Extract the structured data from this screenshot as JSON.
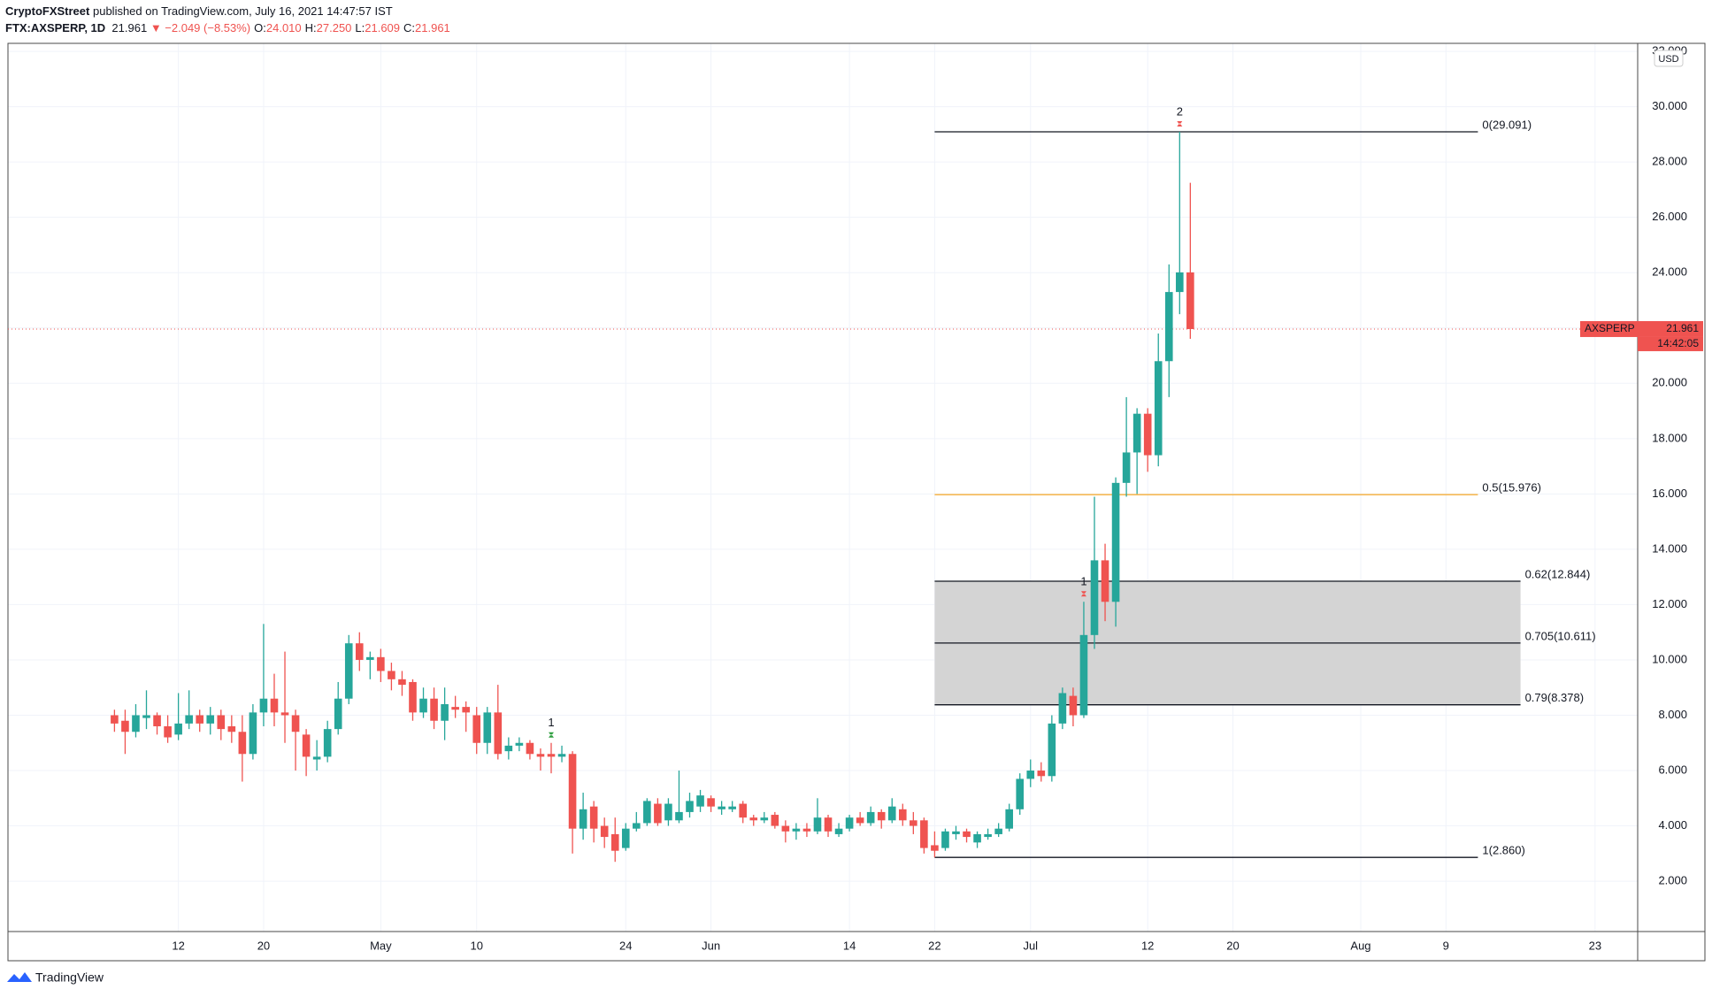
{
  "header": {
    "publisher": "CryptoFXStreet",
    "published": "published on TradingView.com, July 16, 2021 14:47:57 IST",
    "symbol": "FTX:AXSPERP, 1D",
    "last": "21.961",
    "change": "▼ −2.049 (−8.53%)",
    "ohlc": [
      {
        "key": "O:",
        "value": "24.010"
      },
      {
        "key": "H:",
        "value": "27.250"
      },
      {
        "key": "L:",
        "value": "21.609"
      },
      {
        "key": "C:",
        "value": "21.961"
      }
    ]
  },
  "footer": {
    "brand": "TradingView"
  },
  "chart_data": {
    "type": "candlestick",
    "up_color": "#26a69a",
    "down_color": "#ef5350",
    "currency": "USD",
    "x": [
      "2021-04-06",
      "2021-04-07",
      "2021-04-08",
      "2021-04-09",
      "2021-04-10",
      "2021-04-11",
      "2021-04-12",
      "2021-04-13",
      "2021-04-14",
      "2021-04-15",
      "2021-04-16",
      "2021-04-17",
      "2021-04-18",
      "2021-04-19",
      "2021-04-20",
      "2021-04-21",
      "2021-04-22",
      "2021-04-23",
      "2021-04-24",
      "2021-04-25",
      "2021-04-26",
      "2021-04-27",
      "2021-04-28",
      "2021-04-29",
      "2021-04-30",
      "2021-05-01",
      "2021-05-02",
      "2021-05-03",
      "2021-05-04",
      "2021-05-05",
      "2021-05-06",
      "2021-05-07",
      "2021-05-08",
      "2021-05-09",
      "2021-05-10",
      "2021-05-11",
      "2021-05-12",
      "2021-05-13",
      "2021-05-14",
      "2021-05-15",
      "2021-05-16",
      "2021-05-17",
      "2021-05-18",
      "2021-05-19",
      "2021-05-20",
      "2021-05-21",
      "2021-05-22",
      "2021-05-23",
      "2021-05-24",
      "2021-05-25",
      "2021-05-26",
      "2021-05-27",
      "2021-05-28",
      "2021-05-29",
      "2021-05-30",
      "2021-05-31",
      "2021-06-01",
      "2021-06-02",
      "2021-06-03",
      "2021-06-04",
      "2021-06-05",
      "2021-06-06",
      "2021-06-07",
      "2021-06-08",
      "2021-06-09",
      "2021-06-10",
      "2021-06-11",
      "2021-06-12",
      "2021-06-13",
      "2021-06-14",
      "2021-06-15",
      "2021-06-16",
      "2021-06-17",
      "2021-06-18",
      "2021-06-19",
      "2021-06-20",
      "2021-06-21",
      "2021-06-22",
      "2021-06-23",
      "2021-06-24",
      "2021-06-25",
      "2021-06-26",
      "2021-06-27",
      "2021-06-28",
      "2021-06-29",
      "2021-06-30",
      "2021-07-01",
      "2021-07-02",
      "2021-07-03",
      "2021-07-04",
      "2021-07-05",
      "2021-07-06",
      "2021-07-07",
      "2021-07-08",
      "2021-07-09",
      "2021-07-10",
      "2021-07-11",
      "2021-07-12",
      "2021-07-13",
      "2021-07-14",
      "2021-07-15",
      "2021-07-16"
    ],
    "open": [
      8.0,
      7.8,
      7.4,
      7.9,
      8.0,
      7.6,
      7.3,
      7.7,
      8.0,
      7.7,
      8.0,
      7.6,
      7.4,
      6.6,
      8.1,
      8.6,
      8.1,
      8.0,
      7.3,
      6.4,
      6.5,
      7.5,
      8.6,
      10.6,
      10.0,
      10.1,
      9.6,
      9.3,
      9.2,
      8.1,
      8.6,
      7.8,
      8.3,
      8.3,
      8.0,
      7.0,
      8.1,
      6.7,
      6.9,
      7.0,
      6.6,
      6.6,
      6.5,
      6.6,
      3.9,
      4.7,
      4.0,
      3.7,
      3.2,
      3.9,
      4.1,
      4.8,
      4.2,
      4.2,
      4.5,
      4.7,
      5.0,
      4.6,
      4.6,
      4.8,
      4.3,
      4.2,
      4.4,
      4.0,
      3.8,
      3.9,
      3.8,
      4.3,
      3.7,
      3.9,
      4.3,
      4.1,
      4.5,
      4.2,
      4.6,
      4.2,
      4.2,
      3.3,
      3.2,
      3.7,
      3.8,
      3.4,
      3.6,
      3.7,
      3.9,
      4.6,
      5.7,
      6.0,
      5.8,
      7.7,
      8.7,
      8.0,
      10.9,
      13.6,
      12.1,
      16.4,
      17.5,
      18.9,
      17.4,
      20.8,
      23.3,
      24.01
    ],
    "high": [
      8.2,
      8.2,
      8.4,
      8.9,
      8.1,
      8.0,
      8.8,
      8.9,
      8.2,
      8.3,
      8.2,
      8.0,
      8.0,
      8.4,
      11.3,
      9.5,
      10.3,
      8.2,
      7.5,
      7.1,
      7.8,
      9.2,
      10.9,
      11.0,
      10.3,
      10.4,
      9.9,
      9.6,
      9.3,
      9.0,
      9.0,
      9.0,
      8.7,
      8.5,
      8.3,
      8.3,
      9.1,
      7.2,
      7.2,
      7.1,
      6.8,
      7.0,
      6.9,
      6.7,
      5.2,
      4.9,
      4.3,
      4.3,
      4.1,
      4.5,
      5.0,
      5.0,
      5.0,
      6.0,
      5.2,
      5.3,
      5.1,
      4.9,
      4.9,
      4.9,
      4.4,
      4.5,
      4.5,
      4.2,
      4.1,
      4.1,
      5.0,
      4.4,
      4.1,
      4.4,
      4.5,
      4.7,
      4.6,
      5.0,
      4.8,
      4.5,
      4.3,
      3.8,
      3.9,
      4.0,
      3.9,
      3.8,
      3.9,
      4.1,
      4.8,
      5.9,
      6.4,
      6.3,
      8.0,
      9.0,
      9.0,
      12.1,
      15.9,
      14.2,
      16.6,
      19.5,
      19.1,
      19.1,
      21.8,
      24.3,
      29.091,
      27.25
    ],
    "low": [
      7.4,
      6.6,
      7.2,
      7.5,
      7.3,
      7.0,
      7.1,
      7.5,
      7.4,
      7.3,
      7.1,
      7.0,
      5.6,
      6.4,
      7.6,
      7.6,
      7.0,
      6.0,
      5.8,
      6.0,
      6.3,
      7.3,
      8.4,
      9.6,
      9.3,
      9.2,
      8.9,
      8.7,
      7.8,
      7.9,
      7.5,
      7.1,
      7.9,
      7.4,
      6.6,
      6.6,
      6.4,
      6.4,
      6.7,
      6.4,
      6.0,
      5.9,
      6.3,
      3.0,
      3.5,
      3.4,
      3.2,
      2.7,
      3.1,
      3.8,
      4.0,
      4.0,
      4.0,
      4.1,
      4.3,
      4.5,
      4.5,
      4.4,
      4.5,
      4.1,
      4.0,
      4.1,
      3.9,
      3.4,
      3.5,
      3.6,
      3.7,
      3.6,
      3.6,
      3.8,
      4.0,
      4.0,
      3.9,
      4.1,
      4.0,
      3.7,
      3.0,
      2.86,
      3.1,
      3.5,
      3.4,
      3.2,
      3.5,
      3.6,
      3.8,
      4.4,
      5.4,
      5.6,
      5.6,
      7.5,
      7.6,
      7.9,
      10.4,
      11.4,
      11.2,
      15.9,
      16.0,
      16.8,
      17.0,
      19.5,
      22.5,
      21.609
    ],
    "close": [
      7.7,
      7.4,
      8.0,
      8.0,
      7.6,
      7.2,
      7.7,
      8.0,
      7.7,
      8.0,
      7.5,
      7.4,
      6.6,
      8.1,
      8.6,
      8.1,
      8.0,
      7.4,
      6.5,
      6.5,
      7.5,
      8.6,
      10.6,
      10.0,
      10.1,
      9.6,
      9.3,
      9.1,
      8.1,
      8.6,
      7.8,
      8.4,
      8.2,
      8.1,
      7.0,
      8.1,
      6.6,
      6.9,
      7.0,
      6.6,
      6.5,
      6.5,
      6.6,
      3.9,
      4.6,
      3.9,
      3.6,
      3.1,
      3.9,
      4.1,
      4.9,
      4.1,
      4.8,
      4.5,
      4.9,
      5.1,
      4.7,
      4.7,
      4.7,
      4.3,
      4.2,
      4.3,
      4.0,
      3.8,
      3.9,
      3.8,
      4.3,
      3.8,
      3.9,
      4.3,
      4.1,
      4.5,
      4.2,
      4.7,
      4.2,
      4.0,
      3.2,
      3.1,
      3.8,
      3.8,
      3.6,
      3.7,
      3.7,
      3.9,
      4.6,
      5.7,
      6.0,
      5.8,
      7.7,
      8.8,
      8.0,
      10.9,
      13.6,
      12.1,
      16.4,
      17.5,
      18.9,
      17.4,
      20.8,
      23.3,
      24.01,
      21.961
    ],
    "xlim": [
      "2021-03-27",
      "2021-08-27"
    ],
    "xticks": [
      {
        "value": "2021-04-12",
        "label": "12"
      },
      {
        "value": "2021-04-20",
        "label": "20"
      },
      {
        "value": "2021-05-01",
        "label": "May"
      },
      {
        "value": "2021-05-10",
        "label": "10"
      },
      {
        "value": "2021-05-24",
        "label": "24"
      },
      {
        "value": "2021-06-01",
        "label": "Jun"
      },
      {
        "value": "2021-06-14",
        "label": "14"
      },
      {
        "value": "2021-06-22",
        "label": "22"
      },
      {
        "value": "2021-07-01",
        "label": "Jul"
      },
      {
        "value": "2021-07-12",
        "label": "12"
      },
      {
        "value": "2021-07-20",
        "label": "20"
      },
      {
        "value": "2021-08-01",
        "label": "Aug"
      },
      {
        "value": "2021-08-09",
        "label": "9"
      },
      {
        "value": "2021-08-23",
        "label": "23"
      }
    ],
    "ylim": [
      0.18,
      32.29
    ],
    "yticks": [
      {
        "value": 2,
        "label": "2.000"
      },
      {
        "value": 4,
        "label": "4.000"
      },
      {
        "value": 6,
        "label": "6.000"
      },
      {
        "value": 8,
        "label": "8.000"
      },
      {
        "value": 10,
        "label": "10.000"
      },
      {
        "value": 12,
        "label": "12.000"
      },
      {
        "value": 14,
        "label": "14.000"
      },
      {
        "value": 16,
        "label": "16.000"
      },
      {
        "value": 18,
        "label": "18.000"
      },
      {
        "value": 20,
        "label": "20.000"
      },
      {
        "value": 22,
        "label": "22.000"
      },
      {
        "value": 24,
        "label": "24.000"
      },
      {
        "value": 26,
        "label": "26.000"
      },
      {
        "value": 28,
        "label": "28.000"
      },
      {
        "value": 30,
        "label": "30.000"
      },
      {
        "value": 32,
        "label": "32.000"
      }
    ],
    "grid": true,
    "fib_levels": [
      {
        "value": 29.091,
        "label": "0(29.091)",
        "x_start": "2021-06-22",
        "x_end": "2021-08-12",
        "color": "#131722",
        "shaded": false
      },
      {
        "value": 15.976,
        "label": "0.5(15.976)",
        "x_start": "2021-06-22",
        "x_end": "2021-08-12",
        "color": "#f5a623",
        "shaded": false
      },
      {
        "value": 12.844,
        "label": "0.62(12.844)",
        "x_start": "2021-06-22",
        "x_end": "2021-08-16",
        "color": "#131722",
        "shaded": true
      },
      {
        "value": 10.611,
        "label": "0.705(10.611)",
        "x_start": "2021-06-22",
        "x_end": "2021-08-16",
        "color": "#131722",
        "shaded": true
      },
      {
        "value": 8.378,
        "label": "0.79(8.378)",
        "x_start": "2021-06-22",
        "x_end": "2021-08-16",
        "color": "#131722",
        "shaded": true
      },
      {
        "value": 2.86,
        "label": "1(2.860)",
        "x_start": "2021-06-22",
        "x_end": "2021-08-12",
        "color": "#131722",
        "shaded": false
      }
    ],
    "zone_color": "#d4d4d4",
    "markers": [
      {
        "text": "1",
        "x": "2021-05-17",
        "color": "#2e9e3e"
      },
      {
        "text": "1",
        "x": "2021-07-06",
        "color": "#ef5350"
      },
      {
        "text": "2",
        "x": "2021-07-15",
        "color": "#ef5350"
      }
    ],
    "last_price": {
      "symbol": "AXSPERP",
      "value": 21.961,
      "countdown": "14:42:05",
      "color": "#ef5350"
    }
  }
}
